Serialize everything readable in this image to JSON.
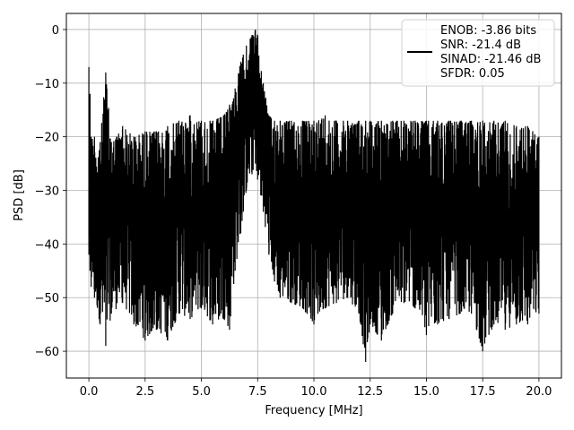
{
  "chart_data": {
    "type": "line",
    "title": "",
    "xlabel": "Frequency [MHz]",
    "ylabel": "PSD [dB]",
    "xlim": [
      -1.0,
      21.0
    ],
    "ylim": [
      -65.0,
      3.0
    ],
    "xticks": [
      0.0,
      2.5,
      5.0,
      7.5,
      10.0,
      12.5,
      15.0,
      17.5,
      20.0
    ],
    "xtick_labels": [
      "0.0",
      "2.5",
      "5.0",
      "7.5",
      "10.0",
      "12.5",
      "15.0",
      "17.5",
      "20.0"
    ],
    "yticks": [
      0,
      -10,
      -20,
      -30,
      -40,
      -50,
      -60
    ],
    "ytick_labels": [
      "0",
      "−10",
      "−20",
      "−30",
      "−40",
      "−50",
      "−60"
    ],
    "grid": true,
    "legend_position": "top-right",
    "legend_entries": [
      "ENOB: -3.86 bits",
      "SNR: -21.4 dB",
      "SINAD: -21.46 dB",
      "SFDR: 0.05"
    ],
    "series": [
      {
        "color": "#000000",
        "x": [
          0.0,
          0.05,
          0.1,
          0.25,
          0.5,
          0.75,
          1.0,
          1.5,
          2.0,
          2.5,
          3.0,
          3.5,
          4.0,
          4.5,
          5.0,
          5.5,
          6.0,
          6.25,
          6.5,
          6.75,
          7.0,
          7.25,
          7.4,
          7.5,
          7.75,
          8.0,
          8.25,
          8.5,
          9.0,
          9.5,
          10.0,
          10.5,
          11.0,
          11.5,
          12.0,
          12.3,
          12.5,
          13.0,
          13.5,
          14.0,
          14.5,
          15.0,
          15.5,
          16.0,
          16.5,
          17.0,
          17.5,
          18.0,
          18.5,
          19.0,
          19.5,
          20.0
        ],
        "upper": [
          -7,
          -12,
          -20,
          -20,
          -21,
          -8,
          -21,
          -18,
          -20,
          -19,
          -19,
          -18,
          -17,
          -16,
          -17,
          -17,
          -16,
          -14,
          -11,
          -6,
          -3,
          -1,
          0,
          -1,
          -10,
          -16,
          -17,
          -17,
          -17,
          -17,
          -17,
          -16,
          -17,
          -17,
          -17,
          -17,
          -17,
          -17,
          -17,
          -17,
          -17,
          -17,
          -17,
          -17,
          -17,
          -17,
          -17,
          -17,
          -17,
          -18,
          -18,
          -20
        ],
        "lower": [
          -42,
          -45,
          -48,
          -50,
          -55,
          -59,
          -53,
          -51,
          -55,
          -58,
          -56,
          -58,
          -53,
          -54,
          -52,
          -55,
          -54,
          -56,
          -45,
          -38,
          -30,
          -27,
          -25,
          -28,
          -34,
          -42,
          -47,
          -50,
          -51,
          -52,
          -55,
          -52,
          -51,
          -50,
          -53,
          -62,
          -55,
          -58,
          -53,
          -51,
          -52,
          -57,
          -55,
          -54,
          -53,
          -53,
          -60,
          -55,
          -56,
          -55,
          -55,
          -53
        ]
      }
    ]
  }
}
